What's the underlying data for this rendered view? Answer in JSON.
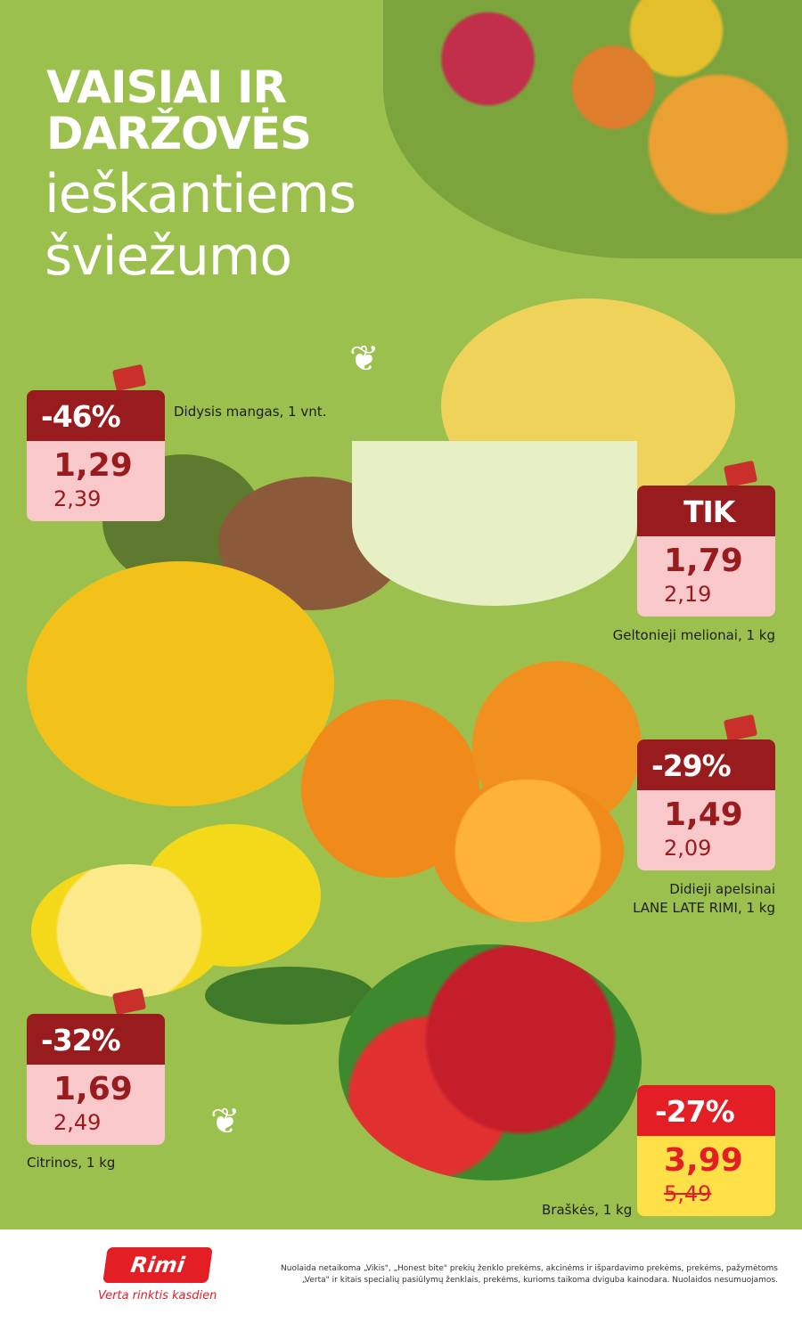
{
  "headline": {
    "line1": "VAISIAI IR",
    "line2": "DARŽOVĖS",
    "line3": "ieškantiems",
    "line4": "šviežumo"
  },
  "products": [
    {
      "name": "Didysis mangas, 1 vnt.",
      "badge": "-46%",
      "price": "1,29",
      "old_price": "2,39"
    },
    {
      "name": "Geltonieji melionai, 1 kg",
      "badge": "TIK",
      "price": "1,79",
      "old_price": "2,19"
    },
    {
      "name_line1": "Didieji apelsinai",
      "name_line2": "LANE LATE RIMI, 1 kg",
      "badge": "-29%",
      "price": "1,49",
      "old_price": "2,09"
    },
    {
      "name": "Citrinos, 1 kg",
      "badge": "-32%",
      "price": "1,69",
      "old_price": "2,49"
    },
    {
      "name": "Braškės, 1 kg",
      "badge": "-27%",
      "price": "3,99",
      "old_price": "5,49"
    }
  ],
  "colors": {
    "background": "#9cc04e",
    "tag_dark": "#981b1e",
    "tag_light": "#f8c8cb",
    "promo_red": "#e31e25",
    "promo_yellow": "#fde047"
  },
  "footer": {
    "logo": "Rimi",
    "tagline": "Verta rinktis kasdien",
    "disclaimer": "Nuolaida netaikoma „Vikis\", „Honest bite\" prekių ženklo prekėms, akcinėms ir išpardavimo prekėms, prekėms, pažymėtoms „Verta\" ir kitais specialių pasiūlymų ženklais, prekėms, kurioms taikoma dviguba kainodara. Nuolaidos nesumuojamos."
  }
}
